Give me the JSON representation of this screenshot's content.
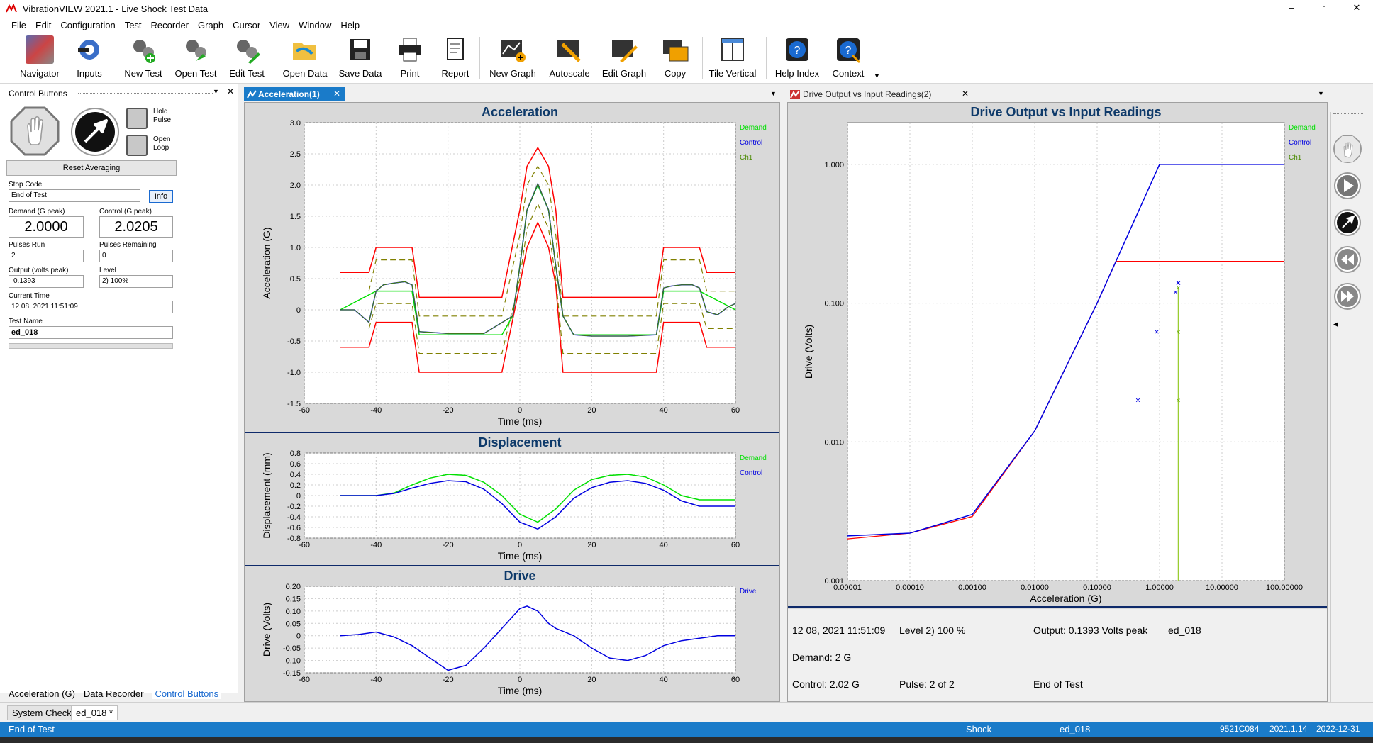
{
  "title": "VibrationVIEW 2021.1 - Live Shock Test Data",
  "window_controls": {
    "minimize": "–",
    "restore": "▫",
    "close": "✕"
  },
  "menu": [
    "File",
    "Edit",
    "Configuration",
    "Test",
    "Recorder",
    "Graph",
    "Cursor",
    "View",
    "Window",
    "Help"
  ],
  "toolbar": [
    {
      "id": "navigator",
      "label": "Navigator",
      "icon": "navigator-icon"
    },
    {
      "id": "inputs",
      "label": "Inputs",
      "icon": "inputs-icon"
    },
    {
      "id": "new-test",
      "label": "New Test",
      "icon": "new-test-icon"
    },
    {
      "id": "open-test",
      "label": "Open Test",
      "icon": "open-test-icon"
    },
    {
      "id": "edit-test",
      "label": "Edit Test",
      "icon": "edit-test-icon"
    },
    {
      "id": "open-data",
      "label": "Open Data",
      "icon": "open-data-icon"
    },
    {
      "id": "save-data",
      "label": "Save Data",
      "icon": "save-data-icon"
    },
    {
      "id": "print",
      "label": "Print",
      "icon": "print-icon"
    },
    {
      "id": "report",
      "label": "Report",
      "icon": "report-icon"
    },
    {
      "id": "new-graph",
      "label": "New Graph",
      "icon": "new-graph-icon"
    },
    {
      "id": "autoscale",
      "label": "Autoscale",
      "icon": "autoscale-icon"
    },
    {
      "id": "edit-graph",
      "label": "Edit Graph",
      "icon": "edit-graph-icon"
    },
    {
      "id": "copy",
      "label": "Copy",
      "icon": "copy-icon"
    },
    {
      "id": "tile-vertical",
      "label": "Tile Vertical",
      "icon": "tile-vertical-icon"
    },
    {
      "id": "help-index",
      "label": "Help Index",
      "icon": "help-index-icon"
    },
    {
      "id": "context",
      "label": "Context",
      "icon": "context-help-icon"
    }
  ],
  "control_panel": {
    "header": "Control Buttons",
    "hold_pulse": "Hold Pulse",
    "open_loop": "Open Loop",
    "reset_averaging": "Reset Averaging",
    "stop_code_label": "Stop Code",
    "stop_code": "End of Test",
    "info_button": "Info",
    "demand_label": "Demand (G peak)",
    "demand": "2.0000",
    "control_label": "Control (G peak)",
    "control": "2.0205",
    "pulses_run_label": "Pulses Run",
    "pulses_run": "2",
    "pulses_remaining_label": "Pulses Remaining",
    "pulses_remaining": "0",
    "output_label": "Output (volts peak)",
    "output": "0.1393",
    "level_label": "Level",
    "level": "2) 100%",
    "current_time_label": "Current Time",
    "current_time": "12 08, 2021 11:51:09",
    "test_name_label": "Test Name",
    "test_name": "ed_018"
  },
  "left_tabs": [
    "Acceleration (G)",
    "Data Recorder",
    "Control Buttons"
  ],
  "doc_tabs": [
    "System Check",
    "ed_018 *"
  ],
  "window1_tab": "Acceleration(1)",
  "window2_tab": "Drive Output vs Input Readings(2)",
  "summary": {
    "time": "12 08, 2021 11:51:09",
    "level": "Level 2) 100 %",
    "output": "Output: 0.1393 Volts peak",
    "test": "ed_018",
    "demand": "Demand: 2 G",
    "control": "Control: 2.02 G",
    "pulse": "Pulse: 2 of 2",
    "status": "End of Test"
  },
  "statusbar": {
    "left": "End of Test",
    "mode": "Shock",
    "file": "ed_018",
    "serial": "9521C084",
    "version": "2021.1.14",
    "date": "2022-12-31"
  },
  "colors": {
    "demand": "#00e000",
    "control": "#0000e0",
    "ch1": "#4a8a00",
    "tolerance": "#ff0000",
    "warning": "#808000",
    "statusbar": "#1a7bc9",
    "tab_active": "#1a7bc9"
  },
  "chart_data": [
    {
      "type": "line",
      "title": "Acceleration",
      "xlabel": "Time (ms)",
      "ylabel": "Acceleration (G)",
      "xlim": [
        -60,
        60
      ],
      "ylim": [
        -1.5,
        3.0
      ],
      "xticks": [
        "-60",
        "-40",
        "-20",
        "0",
        "20",
        "40",
        "60"
      ],
      "yticks": [
        "3.0",
        "2.5",
        "2.0",
        "1.5",
        "1.0",
        "0.5",
        "0",
        "-0.5",
        "-1.0",
        "-1.5"
      ],
      "legend": [
        "Demand",
        "Control",
        "Ch1"
      ],
      "series": [
        {
          "name": "Demand",
          "x": [
            -50,
            -40,
            -30,
            -28,
            -5,
            -2,
            0,
            2,
            5,
            8,
            10,
            12,
            15,
            18,
            38,
            40,
            50,
            60
          ],
          "y": [
            0.0,
            0.3,
            0.3,
            -0.4,
            -0.4,
            -0.1,
            0.7,
            1.6,
            2.0,
            1.6,
            0.7,
            -0.1,
            -0.4,
            -0.4,
            -0.4,
            0.3,
            0.3,
            0.0
          ]
        },
        {
          "name": "Control",
          "x": [
            -50,
            -46,
            -42,
            -40,
            -38,
            -35,
            -32,
            -30,
            -28,
            -20,
            -10,
            -2,
            0,
            2,
            5,
            8,
            10,
            12,
            15,
            20,
            30,
            38,
            40,
            42,
            45,
            48,
            50,
            52,
            55,
            58,
            60
          ],
          "y": [
            0.0,
            0.0,
            -0.2,
            0.3,
            0.4,
            0.43,
            0.45,
            0.4,
            -0.35,
            -0.38,
            -0.38,
            -0.1,
            0.7,
            1.6,
            2.02,
            1.6,
            0.7,
            -0.1,
            -0.4,
            -0.42,
            -0.42,
            -0.4,
            0.35,
            0.38,
            0.4,
            0.4,
            0.35,
            -0.03,
            -0.08,
            0.05,
            0.1
          ]
        },
        {
          "name": "Ch1",
          "x": [
            -50,
            -46,
            -42,
            -40,
            -38,
            -35,
            -32,
            -30,
            -28,
            -20,
            -10,
            -2,
            0,
            2,
            5,
            8,
            10,
            12,
            15,
            20,
            30,
            38,
            40,
            42,
            45,
            48,
            50,
            52,
            55,
            58,
            60
          ],
          "y": [
            0.0,
            0.0,
            -0.2,
            0.3,
            0.4,
            0.43,
            0.45,
            0.4,
            -0.35,
            -0.38,
            -0.38,
            -0.1,
            0.7,
            1.6,
            2.02,
            1.6,
            0.7,
            -0.1,
            -0.4,
            -0.42,
            -0.42,
            -0.4,
            0.35,
            0.38,
            0.4,
            0.4,
            0.35,
            -0.03,
            -0.08,
            0.05,
            0.1
          ]
        },
        {
          "name": "Upper abort",
          "x": [
            -50,
            -42,
            -40,
            -30,
            -28,
            -5,
            0,
            2,
            5,
            8,
            10,
            12,
            15,
            38,
            40,
            50,
            52,
            60
          ],
          "y": [
            0.6,
            0.6,
            1.0,
            1.0,
            0.2,
            0.2,
            1.6,
            2.3,
            2.6,
            2.3,
            1.6,
            0.2,
            0.2,
            0.2,
            1.0,
            1.0,
            0.6,
            0.6
          ]
        },
        {
          "name": "Lower abort",
          "x": [
            -50,
            -42,
            -40,
            -30,
            -28,
            -5,
            0,
            2,
            5,
            8,
            10,
            12,
            15,
            38,
            40,
            50,
            52,
            60
          ],
          "y": [
            -0.6,
            -0.6,
            -0.2,
            -0.2,
            -1.0,
            -1.0,
            0.4,
            1.0,
            1.4,
            1.0,
            0.4,
            -1.0,
            -1.0,
            -1.0,
            -0.2,
            -0.2,
            -0.6,
            -0.6
          ]
        },
        {
          "name": "Upper warning",
          "x": [
            -42,
            -40,
            -30,
            -28,
            -5,
            0,
            2,
            5,
            8,
            10,
            12,
            15,
            38,
            40,
            50,
            52,
            60
          ],
          "y": [
            0.3,
            0.8,
            0.8,
            -0.1,
            -0.1,
            1.2,
            2.0,
            2.3,
            2.0,
            1.2,
            -0.1,
            -0.1,
            -0.1,
            0.8,
            0.8,
            0.3,
            0.3
          ]
        },
        {
          "name": "Lower warning",
          "x": [
            -42,
            -40,
            -30,
            -28,
            -5,
            0,
            2,
            5,
            8,
            10,
            12,
            15,
            38,
            40,
            50,
            52,
            60
          ],
          "y": [
            -0.3,
            0.1,
            0.1,
            -0.7,
            -0.7,
            0.5,
            1.3,
            1.7,
            1.3,
            0.5,
            -0.7,
            -0.7,
            -0.7,
            0.1,
            0.1,
            -0.3,
            -0.3
          ]
        }
      ]
    },
    {
      "type": "line",
      "title": "Displacement",
      "xlabel": "Time (ms)",
      "ylabel": "Displacement (mm)",
      "xlim": [
        -60,
        60
      ],
      "ylim": [
        -0.8,
        0.8
      ],
      "xticks": [
        "-60",
        "-40",
        "-20",
        "0",
        "20",
        "40",
        "60"
      ],
      "yticks": [
        "0.8",
        "0.6",
        "0.4",
        "0.2",
        "0",
        "-0.2",
        "-0.4",
        "-0.6",
        "-0.8"
      ],
      "legend": [
        "Demand",
        "Control"
      ],
      "series": [
        {
          "name": "Demand",
          "x": [
            -50,
            -40,
            -35,
            -30,
            -25,
            -20,
            -15,
            -10,
            -5,
            0,
            5,
            10,
            15,
            20,
            25,
            30,
            35,
            40,
            45,
            50,
            60
          ],
          "y": [
            0,
            0,
            0.05,
            0.2,
            0.33,
            0.4,
            0.38,
            0.25,
            0.0,
            -0.35,
            -0.5,
            -0.25,
            0.1,
            0.3,
            0.38,
            0.4,
            0.35,
            0.2,
            0.0,
            -0.08,
            -0.08
          ]
        },
        {
          "name": "Control",
          "x": [
            -50,
            -40,
            -35,
            -30,
            -25,
            -20,
            -15,
            -10,
            -5,
            0,
            5,
            10,
            15,
            20,
            25,
            30,
            35,
            40,
            45,
            50,
            60
          ],
          "y": [
            0,
            0,
            0.04,
            0.14,
            0.23,
            0.28,
            0.26,
            0.12,
            -0.15,
            -0.5,
            -0.63,
            -0.4,
            -0.05,
            0.15,
            0.25,
            0.28,
            0.23,
            0.1,
            -0.1,
            -0.2,
            -0.2
          ]
        }
      ]
    },
    {
      "type": "line",
      "title": "Drive",
      "xlabel": "Time (ms)",
      "ylabel": "Drive (Volts)",
      "xlim": [
        -60,
        60
      ],
      "ylim": [
        -0.15,
        0.2
      ],
      "xticks": [
        "-60",
        "-40",
        "-20",
        "0",
        "20",
        "40",
        "60"
      ],
      "yticks": [
        "0.20",
        "0.15",
        "0.10",
        "0.05",
        "0",
        "-0.05",
        "-0.10",
        "-0.15"
      ],
      "legend": [
        "Drive"
      ],
      "series": [
        {
          "name": "Drive",
          "x": [
            -50,
            -45,
            -40,
            -35,
            -30,
            -25,
            -20,
            -15,
            -10,
            -5,
            0,
            2,
            5,
            8,
            10,
            15,
            20,
            25,
            30,
            35,
            40,
            45,
            50,
            55,
            60
          ],
          "y": [
            0,
            0.005,
            0.015,
            -0.005,
            -0.04,
            -0.09,
            -0.14,
            -0.12,
            -0.05,
            0.03,
            0.11,
            0.12,
            0.1,
            0.05,
            0.03,
            0.0,
            -0.05,
            -0.09,
            -0.1,
            -0.08,
            -0.04,
            -0.02,
            -0.01,
            0.0,
            0.0
          ]
        }
      ]
    },
    {
      "type": "line",
      "title": "Drive Output vs Input Readings",
      "xlabel": "Acceleration (G)",
      "ylabel": "Drive (Volts)",
      "xscale": "log",
      "yscale": "log",
      "xlim": [
        1e-05,
        100
      ],
      "ylim": [
        0.001,
        2
      ],
      "xticks": [
        "0.00001",
        "0.00010",
        "0.00100",
        "0.01000",
        "0.10000",
        "1.00000",
        "10.00000",
        "100.00000"
      ],
      "yticks": [
        "1.000",
        "0.100",
        "0.010",
        "0.001"
      ],
      "legend": [
        "Demand",
        "Control",
        "Ch1"
      ],
      "series": [
        {
          "name": "Control line",
          "x": [
            1e-05,
            0.0001,
            0.001,
            0.01,
            0.1,
            1,
            100
          ],
          "y": [
            0.0021,
            0.0022,
            0.003,
            0.012,
            0.1,
            1.0,
            1.0
          ]
        },
        {
          "name": "Limit",
          "x": [
            1e-05,
            0.0001,
            0.001,
            0.01,
            0.1,
            0.2,
            100
          ],
          "y": [
            0.002,
            0.0022,
            0.0029,
            0.012,
            0.1,
            0.2,
            0.2
          ]
        },
        {
          "name": "Control points",
          "x": [
            0.45,
            0.9,
            1.8,
            2.0
          ],
          "y": [
            0.02,
            0.062,
            0.12,
            0.14
          ]
        },
        {
          "name": "Ch1 points",
          "x": [
            2.0,
            2.0,
            2.0
          ],
          "y": [
            0.02,
            0.062,
            0.13
          ]
        }
      ]
    }
  ]
}
